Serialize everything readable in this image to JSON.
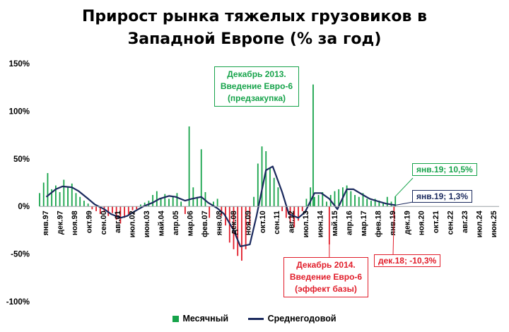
{
  "title_line1": "Прирост рынка тяжелых грузовиков в",
  "title_line2": "Западной Европе (% за год)",
  "colors": {
    "positive": "#16a34a",
    "negative": "#e11d2a",
    "line": "#1b2a5e"
  },
  "legend": {
    "monthly": "Месячный",
    "average": "Среднегодовой"
  },
  "annotations": {
    "dec2013": [
      "Декабрь 2013.",
      "Введение Евро-6",
      "(предзакупка)"
    ],
    "dec2014": [
      "Декабрь 2014.",
      "Введение Евро-6",
      "(эффект базы)"
    ],
    "jan19_monthly": "янв.19; 10,5%",
    "jan19_average": "янв.19; 1,3%",
    "dec18": "дек.18; -10,3%"
  },
  "chart_data": {
    "type": "bar",
    "title": "Прирост рынка тяжелых грузовиков в Западной Европе (% за год)",
    "ylim": [
      -100,
      150
    ],
    "yticks": [
      "150%",
      "100%",
      "50%",
      "0%",
      "-50%",
      "-100%"
    ],
    "ytick_values": [
      150,
      100,
      50,
      0,
      -50,
      -100
    ],
    "x_tick_labels": [
      "янв.97",
      "дек.97",
      "ноя.98",
      "окт.99",
      "сен.00",
      "авг.01",
      "июл.02",
      "июн.03",
      "май.04",
      "апр.05",
      "мар.06",
      "фев.07",
      "янв.08",
      "дек.08",
      "ноя.09",
      "окт.10",
      "сен.11",
      "авг.12",
      "июл.13",
      "июн.14",
      "май.15",
      "апр.16",
      "мар.17",
      "фев.18",
      "янв.19",
      "дек.19",
      "ноя.20",
      "окт.21",
      "сен.22",
      "авг.23",
      "июл.24",
      "июн.25"
    ],
    "x_start": "1997-01",
    "x_end": "2025-06",
    "series": [
      {
        "name": "Месячный",
        "type": "bar",
        "points": [
          [
            "1997-01",
            14
          ],
          [
            "1997-04",
            25
          ],
          [
            "1997-07",
            35
          ],
          [
            "1997-10",
            18
          ],
          [
            "1998-01",
            22
          ],
          [
            "1998-04",
            15
          ],
          [
            "1998-07",
            28
          ],
          [
            "1998-10",
            20
          ],
          [
            "1999-01",
            24
          ],
          [
            "1999-04",
            14
          ],
          [
            "1999-07",
            10
          ],
          [
            "1999-10",
            6
          ],
          [
            "2000-01",
            3
          ],
          [
            "2000-04",
            -3
          ],
          [
            "2000-07",
            -5
          ],
          [
            "2000-10",
            -8
          ],
          [
            "2001-01",
            -6
          ],
          [
            "2001-04",
            -10
          ],
          [
            "2001-07",
            -7
          ],
          [
            "2001-10",
            -14
          ],
          [
            "2002-01",
            -18
          ],
          [
            "2002-04",
            -12
          ],
          [
            "2002-07",
            -9
          ],
          [
            "2002-10",
            -4
          ],
          [
            "2003-01",
            -3
          ],
          [
            "2003-04",
            2
          ],
          [
            "2003-07",
            4
          ],
          [
            "2003-10",
            6
          ],
          [
            "2004-01",
            12
          ],
          [
            "2004-04",
            16
          ],
          [
            "2004-07",
            9
          ],
          [
            "2004-10",
            13
          ],
          [
            "2005-01",
            8
          ],
          [
            "2005-04",
            10
          ],
          [
            "2005-07",
            14
          ],
          [
            "2005-10",
            5
          ],
          [
            "2006-01",
            -8
          ],
          [
            "2006-04",
            84
          ],
          [
            "2006-07",
            20
          ],
          [
            "2006-10",
            10
          ],
          [
            "2007-01",
            60
          ],
          [
            "2007-04",
            15
          ],
          [
            "2007-07",
            -12
          ],
          [
            "2007-10",
            5
          ],
          [
            "2008-01",
            8
          ],
          [
            "2008-04",
            -10
          ],
          [
            "2008-07",
            -20
          ],
          [
            "2008-10",
            -38
          ],
          [
            "2009-01",
            -45
          ],
          [
            "2009-04",
            -52
          ],
          [
            "2009-07",
            -57
          ],
          [
            "2009-10",
            -45
          ],
          [
            "2010-01",
            -20
          ],
          [
            "2010-04",
            10
          ],
          [
            "2010-07",
            45
          ],
          [
            "2010-10",
            63
          ],
          [
            "2011-01",
            58
          ],
          [
            "2011-04",
            40
          ],
          [
            "2011-07",
            30
          ],
          [
            "2011-10",
            20
          ],
          [
            "2012-01",
            -5
          ],
          [
            "2012-04",
            -12
          ],
          [
            "2012-07",
            -18
          ],
          [
            "2012-10",
            -22
          ],
          [
            "2013-01",
            -15
          ],
          [
            "2013-04",
            -5
          ],
          [
            "2013-07",
            8
          ],
          [
            "2013-10",
            20
          ],
          [
            "2013-12",
            128
          ],
          [
            "2014-01",
            10
          ],
          [
            "2014-04",
            12
          ],
          [
            "2014-07",
            15
          ],
          [
            "2014-10",
            5
          ],
          [
            "2014-12",
            -40
          ],
          [
            "2015-01",
            12
          ],
          [
            "2015-04",
            16
          ],
          [
            "2015-07",
            18
          ],
          [
            "2015-10",
            20
          ],
          [
            "2016-01",
            22
          ],
          [
            "2016-04",
            16
          ],
          [
            "2016-07",
            12
          ],
          [
            "2016-10",
            10
          ],
          [
            "2017-01",
            14
          ],
          [
            "2017-04",
            8
          ],
          [
            "2017-07",
            6
          ],
          [
            "2017-10",
            8
          ],
          [
            "2018-01",
            6
          ],
          [
            "2018-04",
            4
          ],
          [
            "2018-07",
            10
          ],
          [
            "2018-10",
            5
          ],
          [
            "2018-12",
            -10.3
          ],
          [
            "2019-01",
            10.5
          ]
        ]
      },
      {
        "name": "Среднегодовой",
        "type": "line",
        "points": [
          [
            "1997-06",
            10
          ],
          [
            "1998-01",
            18
          ],
          [
            "1998-06",
            21
          ],
          [
            "1999-01",
            20
          ],
          [
            "1999-06",
            16
          ],
          [
            "2000-01",
            8
          ],
          [
            "2000-06",
            2
          ],
          [
            "2001-01",
            -3
          ],
          [
            "2001-06",
            -8
          ],
          [
            "2002-01",
            -12
          ],
          [
            "2002-06",
            -10
          ],
          [
            "2003-01",
            -4
          ],
          [
            "2003-06",
            0
          ],
          [
            "2004-01",
            4
          ],
          [
            "2004-06",
            8
          ],
          [
            "2005-01",
            11
          ],
          [
            "2005-06",
            10
          ],
          [
            "2006-01",
            6
          ],
          [
            "2006-06",
            8
          ],
          [
            "2007-01",
            10
          ],
          [
            "2007-06",
            4
          ],
          [
            "2008-01",
            -2
          ],
          [
            "2008-06",
            -8
          ],
          [
            "2009-01",
            -25
          ],
          [
            "2009-06",
            -42
          ],
          [
            "2010-01",
            -40
          ],
          [
            "2010-06",
            -10
          ],
          [
            "2011-01",
            38
          ],
          [
            "2011-06",
            42
          ],
          [
            "2012-01",
            15
          ],
          [
            "2012-06",
            -8
          ],
          [
            "2013-01",
            -12
          ],
          [
            "2013-06",
            -6
          ],
          [
            "2014-01",
            14
          ],
          [
            "2014-06",
            14
          ],
          [
            "2014-12",
            8
          ],
          [
            "2015-06",
            -3
          ],
          [
            "2016-01",
            18
          ],
          [
            "2016-06",
            18
          ],
          [
            "2017-01",
            12
          ],
          [
            "2017-06",
            8
          ],
          [
            "2018-01",
            5
          ],
          [
            "2018-06",
            3
          ],
          [
            "2019-01",
            1.3
          ]
        ]
      }
    ],
    "grid": false,
    "legend_position": "bottom"
  }
}
